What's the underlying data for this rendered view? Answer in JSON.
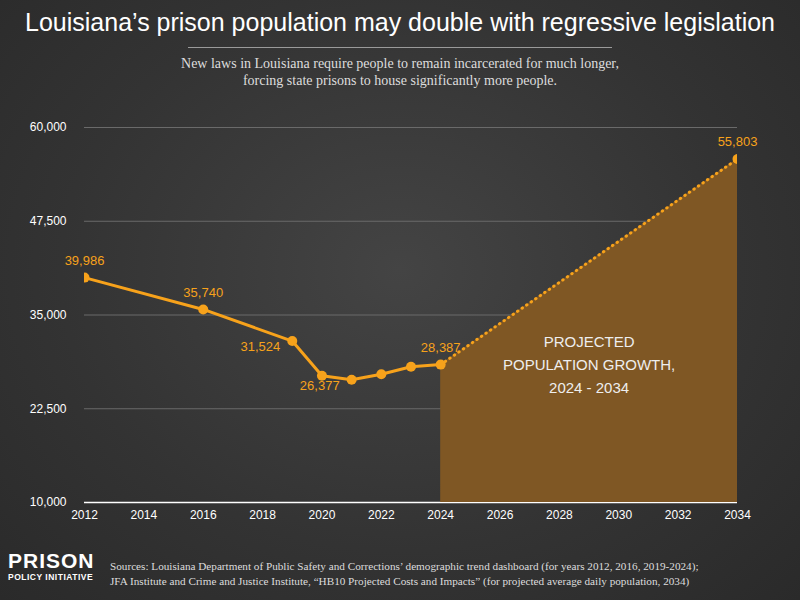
{
  "chart_data": {
    "type": "line",
    "title": "Louisiana’s prison population may double with regressive legislation",
    "subtitle": "New laws in Louisiana require people to remain incarcerated for much longer, forcing state prisons to house significantly more people.",
    "x": [
      2012,
      2016,
      2019,
      2020,
      2021,
      2022,
      2023,
      2024
    ],
    "values": [
      39986,
      35740,
      31524,
      26900,
      26377,
      27100,
      28100,
      28387
    ],
    "value_labels": [
      "39,986",
      "35,740",
      "31,524",
      null,
      "26,377",
      null,
      null,
      "28,387"
    ],
    "color": "#f7a21b",
    "marker": "circle",
    "line_style": "solid",
    "projection": {
      "x": [
        2024,
        2034
      ],
      "values": [
        28387,
        55803
      ],
      "value_labels": [
        null,
        "55,803"
      ],
      "color": "#f7a21b",
      "fill_color": "#7f5724",
      "line_style": "dotted",
      "annotation": [
        "PROJECTED",
        "POPULATION GROWTH,",
        "2024 - 2034"
      ]
    },
    "xlim": [
      2012,
      2034
    ],
    "xticks": [
      2012,
      2014,
      2016,
      2018,
      2020,
      2022,
      2024,
      2026,
      2028,
      2030,
      2032,
      2034
    ],
    "ylim": [
      10000,
      60000
    ],
    "yticks": [
      {
        "value": 10000,
        "label": "10,000"
      },
      {
        "value": 22500,
        "label": "22,500"
      },
      {
        "value": 35000,
        "label": "35,000"
      },
      {
        "value": 47500,
        "label": "47,500"
      },
      {
        "value": 60000,
        "label": "60,000"
      }
    ],
    "grid": true,
    "sources": [
      "Sources: Louisiana Department of Public Safety and Corrections’ demographic trend dashboard (for years 2012, 2016, 2019-2024);",
      "JFA Institute and Crime and Justice Institute, “HB10 Projected Costs and Impacts” (for projected average daily population, 2034)"
    ],
    "logo": [
      "PRISON",
      "POLICY INITIATIVE"
    ]
  }
}
